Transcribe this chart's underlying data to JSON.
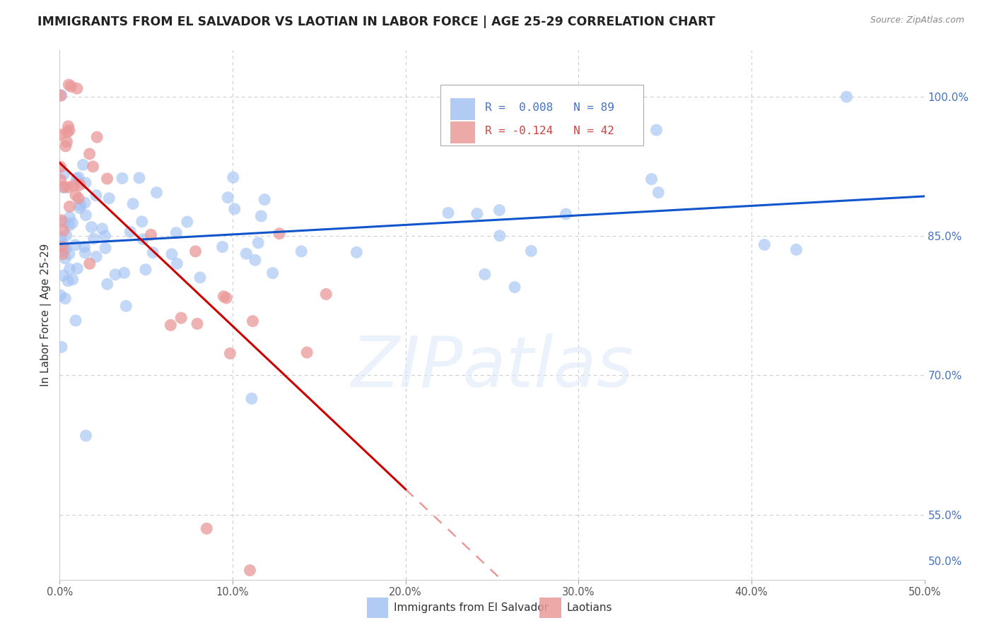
{
  "title": "IMMIGRANTS FROM EL SALVADOR VS LAOTIAN IN LABOR FORCE | AGE 25-29 CORRELATION CHART",
  "source": "Source: ZipAtlas.com",
  "ylabel": "In Labor Force | Age 25-29",
  "blue_R": "R = 0.008",
  "blue_N": "N = 89",
  "pink_R": "R = -0.124",
  "pink_N": "N = 42",
  "blue_color": "#a4c2f4",
  "pink_color": "#ea9999",
  "blue_line_color": "#1155cc",
  "pink_solid_color": "#cc0000",
  "pink_dash_color": "#ea9999",
  "right_tick_color": "#4472c4",
  "grid_color": "#cccccc",
  "background_color": "#ffffff",
  "xlim": [
    0,
    50
  ],
  "ylim": [
    48,
    105
  ],
  "watermark": "ZIPatlas",
  "legend_blue_label": "Immigrants from El Salvador",
  "legend_pink_label": "Laotians",
  "blue_seed": 42,
  "pink_seed": 7
}
